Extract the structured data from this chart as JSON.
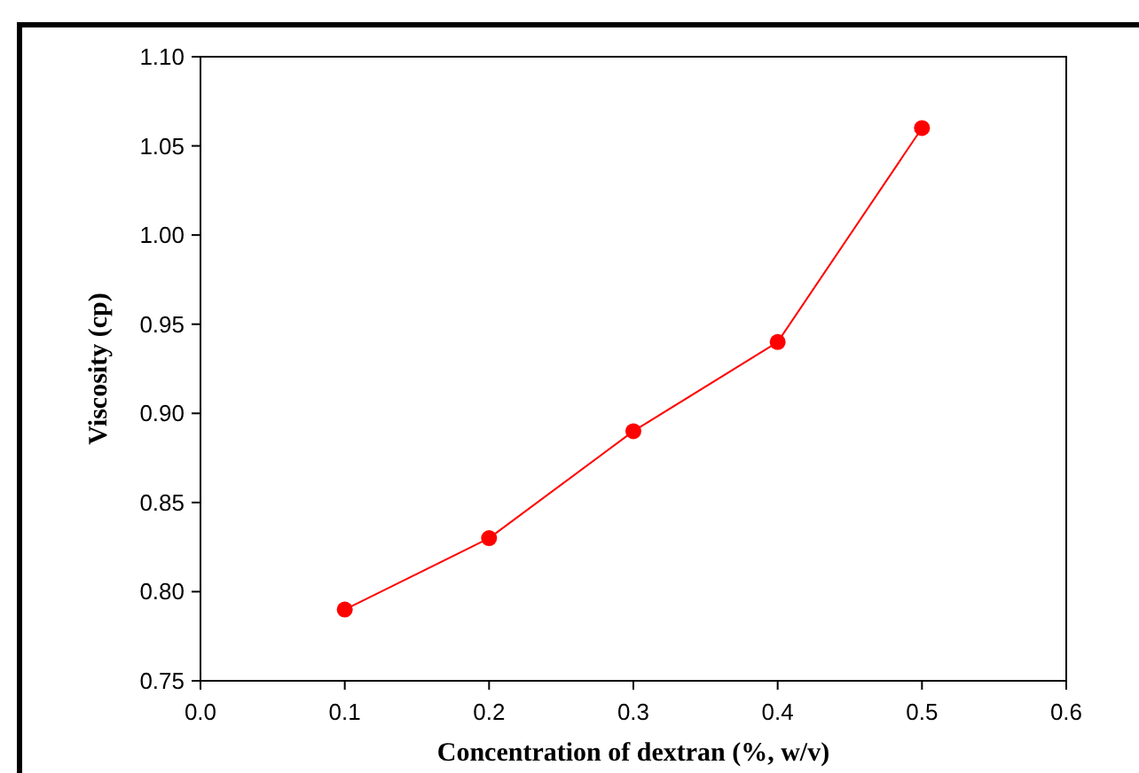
{
  "chart_data": {
    "type": "line",
    "xlabel": "Concentration of dextran (%, w/v)",
    "ylabel": "Viscosity (cp)",
    "x": [
      0.1,
      0.2,
      0.3,
      0.4,
      0.5
    ],
    "series": [
      {
        "color": "#ff0000",
        "values": [
          0.79,
          0.83,
          0.89,
          0.94,
          1.06
        ]
      }
    ],
    "xlim": [
      0,
      0.6
    ],
    "xticks": [
      {
        "value": 0,
        "label": "0.0"
      },
      0.1,
      0.2,
      0.3,
      0.4,
      0.5,
      0.6
    ],
    "ylim": [
      0.75,
      1.1
    ],
    "yticks": [
      {
        "value": 0.75,
        "label": "0.75"
      },
      {
        "value": 0.8,
        "label": "0.80"
      },
      {
        "value": 0.85,
        "label": "0.85"
      },
      {
        "value": 0.9,
        "label": "0.90"
      },
      {
        "value": 0.95,
        "label": "0.95"
      },
      {
        "value": 1.0,
        "label": "1.00"
      },
      {
        "value": 1.05,
        "label": "1.05"
      },
      {
        "value": 1.1,
        "label": "1.10"
      }
    ],
    "marker": "circle",
    "line_style": "solid"
  }
}
